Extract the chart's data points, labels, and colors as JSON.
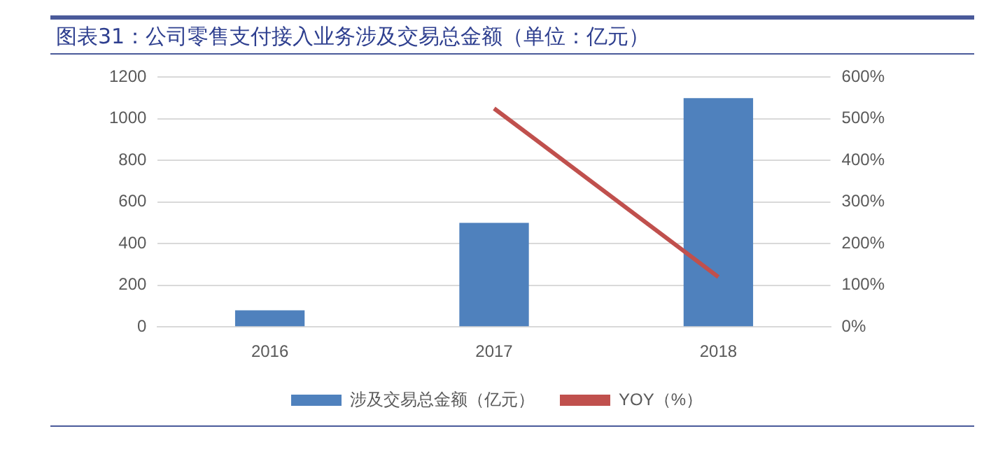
{
  "chart_data": {
    "type": "bar",
    "title": "图表31：公司零售支付接入业务涉及交易总金额（单位：亿元）",
    "categories": [
      "2016",
      "2017",
      "2018"
    ],
    "series": [
      {
        "name": "涉及交易总金额（亿元）",
        "color": "#4f81bd",
        "values": [
          80,
          500,
          1100
        ]
      },
      {
        "name": "YOY（%）",
        "type": "line",
        "axis": "y2",
        "color": "#c0504d",
        "values": [
          null,
          525,
          120
        ]
      }
    ],
    "ylim": [
      0,
      1200
    ],
    "yticks": [
      0,
      200,
      400,
      600,
      800,
      1000,
      1200
    ],
    "y2lim": [
      0,
      600
    ],
    "y2ticks": [
      {
        "value": 0,
        "label": "0%"
      },
      {
        "value": 100,
        "label": "100%"
      },
      {
        "value": 200,
        "label": "200%"
      },
      {
        "value": 300,
        "label": "300%"
      },
      {
        "value": 400,
        "label": "400%"
      },
      {
        "value": 500,
        "label": "500%"
      },
      {
        "value": 600,
        "label": "600%"
      }
    ],
    "grid": "y",
    "legend": "bottom",
    "marker": "none"
  }
}
